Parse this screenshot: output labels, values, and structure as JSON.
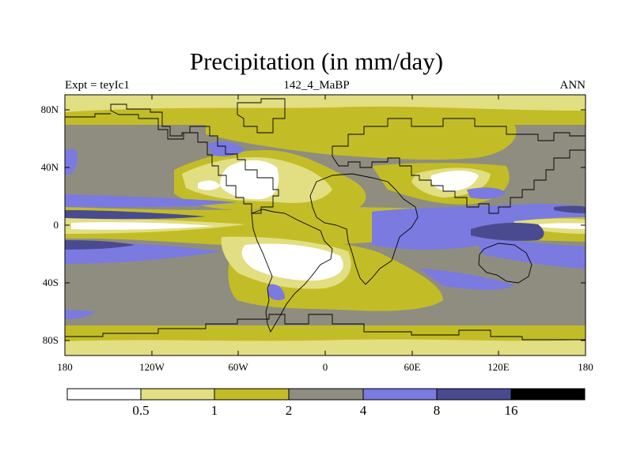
{
  "title": "Precipitation (in mm/day)",
  "subtitle_left": "Expt = teyIc1",
  "subtitle_center": "142_4_MaBP",
  "subtitle_right": "ANN",
  "y_ticks": [
    "80N",
    "40N",
    "0",
    "40S",
    "80S"
  ],
  "x_ticks": [
    "180",
    "120W",
    "60W",
    "0",
    "60E",
    "120E",
    "180"
  ],
  "colorbar": {
    "levels": [
      "0.5",
      "1",
      "2",
      "4",
      "8",
      "16"
    ],
    "colors": [
      "#ffffff",
      "#e2de82",
      "#c2bd26",
      "#8f8d80",
      "#7a7ae0",
      "#4a4a90",
      "#000000"
    ]
  },
  "palette": {
    "white": "#ffffff",
    "light_yellow": "#e2de82",
    "olive": "#c2bd26",
    "gray": "#8f8d80",
    "blue": "#7a7ae0",
    "dark_blue": "#4a4a90"
  }
}
